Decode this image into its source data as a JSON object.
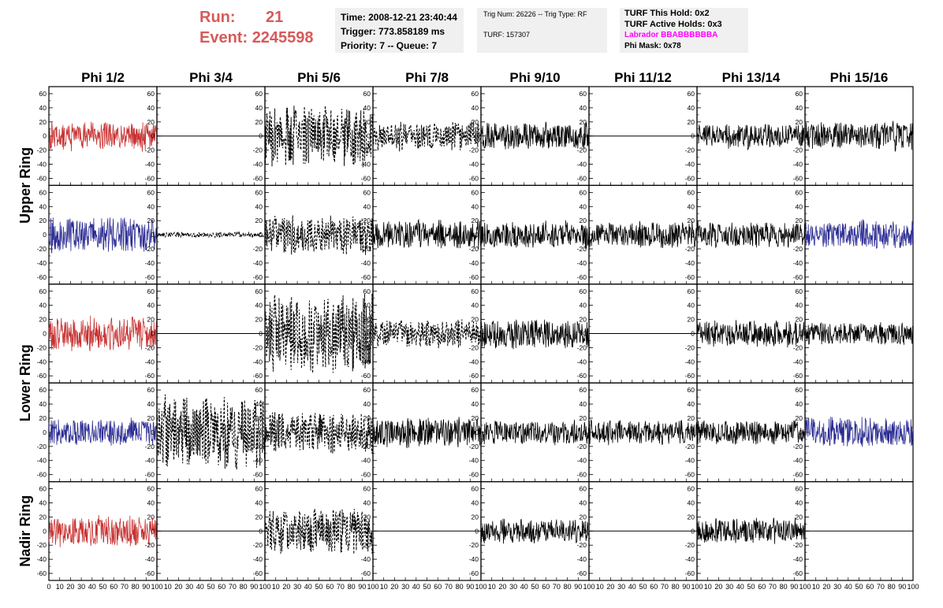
{
  "header": {
    "run_label": "Run:",
    "run_value": "21",
    "event_label": "Event:",
    "event_value": "2245598",
    "time": "Time: 2008-12-21 23:40:44",
    "trigger": "Trigger: 773.858189 ms",
    "priority_queue": "Priority: 7 -- Queue: 7",
    "trig_num_type": "Trig Num: 26226 -- Trig Type: RF",
    "turf": "TURF: 157307",
    "turf_this_hold": "TURF This Hold: 0x2",
    "turf_active_holds": "TURF Active Holds: 0x3",
    "labrador": "Labrador BBABBBBBBA",
    "phi_mask": "Phi Mask: 0x78",
    "labrador_color": "#ff00ff"
  },
  "chart_data": {
    "type": "line",
    "columns": [
      "Phi 1/2",
      "Phi 3/4",
      "Phi 5/6",
      "Phi 7/8",
      "Phi 9/10",
      "Phi 11/12",
      "Phi 13/14",
      "Phi 15/16"
    ],
    "row_labels": [
      {
        "label": "Upper Ring",
        "rows": [
          0,
          1
        ]
      },
      {
        "label": "Lower Ring",
        "rows": [
          2,
          3
        ]
      },
      {
        "label": "Nadir Ring",
        "rows": [
          4
        ]
      }
    ],
    "xlim": [
      0,
      100
    ],
    "ylim": [
      -70,
      70
    ],
    "x_ticks": [
      0,
      10,
      20,
      30,
      40,
      50,
      60,
      70,
      80,
      90,
      100
    ],
    "y_ticks": [
      -60,
      -40,
      -20,
      0,
      20,
      40,
      60
    ],
    "colors": {
      "red": "#c83232",
      "blue": "#2c2c94",
      "black": "#000000"
    },
    "panels": [
      [
        {
          "style": "solid",
          "color": "red",
          "amp": 13,
          "seed": 1
        },
        {
          "style": "flat"
        },
        {
          "style": "dashed",
          "color": "black",
          "amp": 24,
          "seed": 3
        },
        {
          "style": "dashed",
          "color": "black",
          "amp": 11,
          "seed": 4
        },
        {
          "style": "solid",
          "color": "black",
          "amp": 12,
          "seed": 5
        },
        {
          "style": "flat"
        },
        {
          "style": "solid",
          "color": "black",
          "amp": 11,
          "seed": 7
        },
        {
          "style": "solid",
          "color": "black",
          "amp": 13,
          "seed": 8
        }
      ],
      [
        {
          "style": "solid",
          "color": "blue",
          "amp": 16,
          "seed": 11
        },
        {
          "style": "dashed",
          "color": "black",
          "amp": 2,
          "seed": 12
        },
        {
          "style": "dashed",
          "color": "black",
          "amp": 15,
          "seed": 13
        },
        {
          "style": "solid",
          "color": "black",
          "amp": 13,
          "seed": 14
        },
        {
          "style": "solid",
          "color": "black",
          "amp": 12,
          "seed": 15
        },
        {
          "style": "solid",
          "color": "black",
          "amp": 12,
          "seed": 16
        },
        {
          "style": "solid",
          "color": "black",
          "amp": 12,
          "seed": 17
        },
        {
          "style": "solid",
          "color": "blue",
          "amp": 13,
          "seed": 18
        }
      ],
      [
        {
          "style": "solid",
          "color": "red",
          "amp": 15,
          "seed": 21
        },
        {
          "style": "flat"
        },
        {
          "style": "dashed",
          "color": "black",
          "amp": 30,
          "seed": 23
        },
        {
          "style": "dashed",
          "color": "black",
          "amp": 11,
          "seed": 24
        },
        {
          "style": "solid",
          "color": "black",
          "amp": 13,
          "seed": 25
        },
        {
          "style": "flat"
        },
        {
          "style": "solid",
          "color": "black",
          "amp": 12,
          "seed": 27
        },
        {
          "style": "solid",
          "color": "black",
          "amp": 10,
          "seed": 28
        }
      ],
      [
        {
          "style": "solid",
          "color": "blue",
          "amp": 12,
          "seed": 31
        },
        {
          "style": "dashed",
          "color": "black",
          "amp": 28,
          "seed": 32
        },
        {
          "style": "dashed",
          "color": "black",
          "amp": 16,
          "seed": 33
        },
        {
          "style": "solid",
          "color": "black",
          "amp": 13,
          "seed": 34
        },
        {
          "style": "solid",
          "color": "black",
          "amp": 11,
          "seed": 35
        },
        {
          "style": "solid",
          "color": "black",
          "amp": 11,
          "seed": 36
        },
        {
          "style": "solid",
          "color": "black",
          "amp": 11,
          "seed": 37
        },
        {
          "style": "solid",
          "color": "blue",
          "amp": 14,
          "seed": 38
        }
      ],
      [
        {
          "style": "solid",
          "color": "red",
          "amp": 14,
          "seed": 41
        },
        {
          "style": "flat"
        },
        {
          "style": "dashed",
          "color": "black",
          "amp": 18,
          "seed": 43
        },
        {
          "style": "flat"
        },
        {
          "style": "solid",
          "color": "black",
          "amp": 11,
          "seed": 45
        },
        {
          "style": "flat"
        },
        {
          "style": "solid",
          "color": "black",
          "amp": 11,
          "seed": 47
        },
        {
          "style": "flat"
        }
      ]
    ]
  }
}
